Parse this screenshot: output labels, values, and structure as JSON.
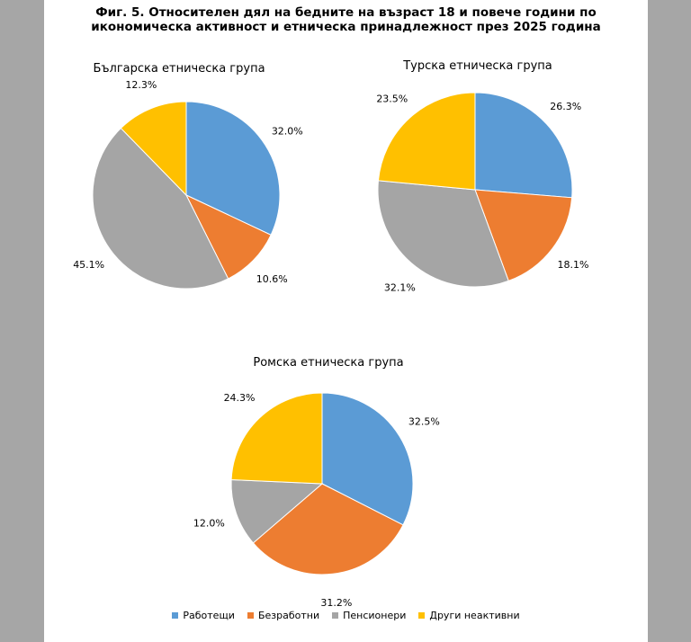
{
  "title": {
    "line1": "Фиг. 5. Относителен дял на бедните на възраст 18 и повече години по",
    "line2": "икономическа активност и етническа принадлежност през 2025 година"
  },
  "colors": {
    "Работещи": "#5b9bd5",
    "Безработни": "#ed7d31",
    "Пенсионери": "#a5a5a5",
    "Други неактивни": "#ffc000"
  },
  "legend": [
    "Работещи",
    "Безработни",
    "Пенсионери",
    "Други неактивни"
  ],
  "chart_data": [
    {
      "type": "pie",
      "title": "Българска етническа група",
      "categories": [
        "Работещи",
        "Безработни",
        "Пенсионери",
        "Други неактивни"
      ],
      "values": [
        32.0,
        10.6,
        45.1,
        12.3
      ],
      "labels": [
        "32.0%",
        "10.6%",
        "45.1%",
        "12.3%"
      ]
    },
    {
      "type": "pie",
      "title": "Турска етническа група",
      "categories": [
        "Работещи",
        "Безработни",
        "Пенсионери",
        "Други неактивни"
      ],
      "values": [
        26.3,
        18.1,
        32.1,
        23.5
      ],
      "labels": [
        "26.3%",
        "18.1%",
        "32.1%",
        "23.5%"
      ]
    },
    {
      "type": "pie",
      "title": "Ромска етническа група",
      "categories": [
        "Работещи",
        "Безработни",
        "Пенсионери",
        "Други неактивни"
      ],
      "values": [
        32.5,
        31.2,
        12.0,
        24.3
      ],
      "labels": [
        "32.5%",
        "31.2%",
        "12.0%",
        "24.3%"
      ]
    }
  ]
}
